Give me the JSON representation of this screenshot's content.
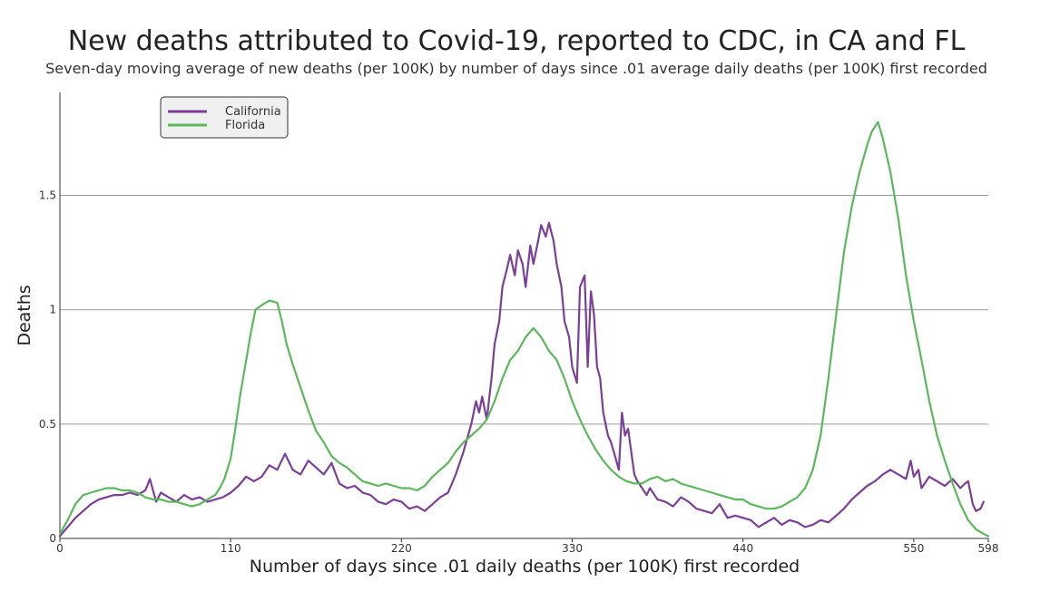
{
  "chart_data": {
    "type": "line",
    "title": "New deaths attributed to Covid-19, reported to CDC, in CA and FL",
    "subtitle": "Seven-day moving average of new deaths (per 100K) by number of days since .01 average daily deaths (per 100K) first recorded",
    "xlabel": "Number of days since .01 daily deaths (per 100K) first recorded",
    "ylabel": "Deaths",
    "xlim": [
      0,
      598
    ],
    "ylim": [
      0,
      1.95
    ],
    "xticks": [
      0,
      110,
      220,
      330,
      440,
      550,
      598
    ],
    "xtick_labels": [
      "0",
      "110",
      "220",
      "330",
      "440",
      "550",
      "598"
    ],
    "yticks": [
      0,
      0.5,
      1,
      1.5
    ],
    "ytick_labels": [
      "0",
      "0.5",
      "1",
      "1.5"
    ],
    "grid": "horizontal",
    "legend_position": "top-left",
    "series": [
      {
        "name": "California",
        "color": "#7b3f98",
        "x": [
          0,
          5,
          10,
          15,
          20,
          25,
          30,
          35,
          40,
          45,
          50,
          55,
          58,
          60,
          62,
          65,
          70,
          75,
          80,
          85,
          90,
          95,
          100,
          105,
          110,
          115,
          120,
          125,
          130,
          135,
          140,
          145,
          150,
          155,
          160,
          165,
          170,
          175,
          180,
          185,
          190,
          195,
          200,
          205,
          210,
          215,
          220,
          225,
          230,
          235,
          240,
          245,
          250,
          255,
          260,
          265,
          268,
          270,
          272,
          275,
          278,
          280,
          283,
          285,
          288,
          290,
          293,
          295,
          298,
          300,
          303,
          305,
          308,
          310,
          313,
          315,
          318,
          320,
          323,
          325,
          328,
          330,
          333,
          335,
          338,
          340,
          342,
          344,
          346,
          348,
          350,
          353,
          355,
          358,
          360,
          362,
          364,
          366,
          368,
          370,
          372,
          375,
          378,
          380,
          385,
          390,
          395,
          400,
          405,
          410,
          415,
          420,
          425,
          430,
          435,
          440,
          445,
          450,
          455,
          460,
          465,
          470,
          475,
          480,
          485,
          490,
          495,
          500,
          505,
          510,
          515,
          520,
          525,
          530,
          535,
          540,
          545,
          548,
          550,
          553,
          555,
          560,
          565,
          570,
          575,
          580,
          583,
          585,
          588,
          590,
          593,
          595
        ],
        "values": [
          0.01,
          0.05,
          0.09,
          0.12,
          0.15,
          0.17,
          0.18,
          0.19,
          0.19,
          0.2,
          0.19,
          0.21,
          0.26,
          0.21,
          0.16,
          0.2,
          0.18,
          0.16,
          0.19,
          0.17,
          0.18,
          0.16,
          0.17,
          0.18,
          0.2,
          0.23,
          0.27,
          0.25,
          0.27,
          0.32,
          0.3,
          0.37,
          0.3,
          0.28,
          0.34,
          0.31,
          0.28,
          0.33,
          0.24,
          0.22,
          0.23,
          0.2,
          0.19,
          0.16,
          0.15,
          0.17,
          0.16,
          0.13,
          0.14,
          0.12,
          0.15,
          0.18,
          0.2,
          0.28,
          0.38,
          0.5,
          0.6,
          0.55,
          0.62,
          0.52,
          0.7,
          0.85,
          0.95,
          1.1,
          1.18,
          1.24,
          1.15,
          1.26,
          1.2,
          1.1,
          1.28,
          1.2,
          1.3,
          1.37,
          1.32,
          1.38,
          1.3,
          1.2,
          1.1,
          0.95,
          0.88,
          0.75,
          0.68,
          1.1,
          1.15,
          0.75,
          1.08,
          0.98,
          0.75,
          0.7,
          0.55,
          0.45,
          0.42,
          0.35,
          0.3,
          0.55,
          0.45,
          0.48,
          0.38,
          0.28,
          0.25,
          0.22,
          0.19,
          0.22,
          0.17,
          0.16,
          0.14,
          0.18,
          0.16,
          0.13,
          0.12,
          0.11,
          0.15,
          0.09,
          0.1,
          0.09,
          0.08,
          0.05,
          0.07,
          0.09,
          0.06,
          0.08,
          0.07,
          0.05,
          0.06,
          0.08,
          0.07,
          0.1,
          0.13,
          0.17,
          0.2,
          0.23,
          0.25,
          0.28,
          0.3,
          0.28,
          0.26,
          0.34,
          0.27,
          0.3,
          0.22,
          0.27,
          0.25,
          0.23,
          0.26,
          0.22,
          0.24,
          0.25,
          0.15,
          0.12,
          0.13,
          0.16
        ]
      },
      {
        "name": "Florida",
        "color": "#5cb85c",
        "x": [
          0,
          5,
          10,
          15,
          20,
          25,
          30,
          35,
          40,
          45,
          50,
          55,
          60,
          65,
          70,
          75,
          80,
          85,
          90,
          95,
          100,
          103,
          106,
          110,
          113,
          116,
          120,
          123,
          126,
          130,
          135,
          140,
          143,
          146,
          150,
          155,
          160,
          165,
          170,
          175,
          180,
          185,
          190,
          195,
          200,
          205,
          210,
          215,
          220,
          225,
          230,
          235,
          240,
          245,
          250,
          255,
          260,
          265,
          270,
          275,
          280,
          285,
          290,
          295,
          300,
          305,
          310,
          315,
          320,
          325,
          330,
          335,
          340,
          345,
          350,
          355,
          360,
          365,
          370,
          375,
          380,
          385,
          390,
          395,
          400,
          405,
          410,
          415,
          420,
          425,
          430,
          435,
          440,
          445,
          450,
          455,
          460,
          465,
          470,
          475,
          480,
          485,
          490,
          495,
          500,
          505,
          510,
          515,
          520,
          523,
          525,
          527,
          530,
          535,
          540,
          545,
          550,
          555,
          560,
          565,
          570,
          575,
          580,
          585,
          590,
          595,
          598
        ],
        "values": [
          0.02,
          0.08,
          0.15,
          0.19,
          0.2,
          0.21,
          0.22,
          0.22,
          0.21,
          0.21,
          0.2,
          0.18,
          0.17,
          0.17,
          0.16,
          0.16,
          0.15,
          0.14,
          0.15,
          0.17,
          0.19,
          0.22,
          0.26,
          0.35,
          0.48,
          0.62,
          0.78,
          0.9,
          1.0,
          1.02,
          1.04,
          1.03,
          0.95,
          0.85,
          0.76,
          0.66,
          0.56,
          0.47,
          0.42,
          0.36,
          0.33,
          0.31,
          0.28,
          0.25,
          0.24,
          0.23,
          0.24,
          0.23,
          0.22,
          0.22,
          0.21,
          0.23,
          0.27,
          0.3,
          0.33,
          0.38,
          0.42,
          0.45,
          0.48,
          0.52,
          0.6,
          0.7,
          0.78,
          0.82,
          0.88,
          0.92,
          0.88,
          0.82,
          0.78,
          0.7,
          0.6,
          0.52,
          0.45,
          0.39,
          0.34,
          0.3,
          0.27,
          0.25,
          0.24,
          0.24,
          0.26,
          0.27,
          0.25,
          0.26,
          0.24,
          0.23,
          0.22,
          0.21,
          0.2,
          0.19,
          0.18,
          0.17,
          0.17,
          0.15,
          0.14,
          0.13,
          0.13,
          0.14,
          0.16,
          0.18,
          0.22,
          0.3,
          0.45,
          0.7,
          0.98,
          1.25,
          1.45,
          1.6,
          1.72,
          1.78,
          1.8,
          1.82,
          1.75,
          1.6,
          1.4,
          1.15,
          0.95,
          0.78,
          0.6,
          0.45,
          0.34,
          0.24,
          0.15,
          0.08,
          0.04,
          0.02,
          0.01
        ]
      }
    ]
  }
}
